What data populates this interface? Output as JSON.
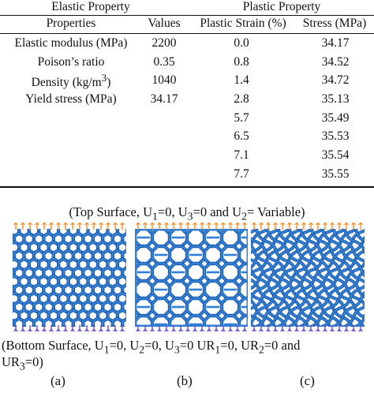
{
  "table": {
    "group_headers": {
      "elastic": "Elastic Property",
      "plastic": "Plastic Property"
    },
    "column_headers": {
      "properties": "Properties",
      "values": "Values",
      "plastic_strain": "Plastic Strain (%)",
      "stress": "Stress (MPa)"
    },
    "elastic_rows": [
      {
        "property_html": "Elastic modulus (MPa)",
        "value": "2200"
      },
      {
        "property_html": "Poison’s ratio",
        "value": "0.35"
      },
      {
        "property_html": "Density (kg/m<sup>3</sup>)",
        "value": "1040"
      },
      {
        "property_html": "Yield stress (MPa)",
        "value": "34.17"
      }
    ],
    "plastic_rows": [
      {
        "strain": "0.0",
        "stress": "34.17"
      },
      {
        "strain": "0.8",
        "stress": "34.52"
      },
      {
        "strain": "1.4",
        "stress": "34.72"
      },
      {
        "strain": "2.8",
        "stress": "35.13"
      },
      {
        "strain": "5.7",
        "stress": "35.49"
      },
      {
        "strain": "6.5",
        "stress": "35.53"
      },
      {
        "strain": "7.1",
        "stress": "35.54"
      },
      {
        "strain": "7.7",
        "stress": "35.55"
      }
    ]
  },
  "figure": {
    "top_caption_html": "(Top Surface, U<sub>1</sub>=0, U<sub>3</sub>=0 and U<sub>2</sub>= Variable)",
    "bottom_caption_line1_html": "(Bottom Surface, U<sub>1</sub>=0, U<sub>2</sub>=0, U<sub>3</sub>=0 UR<sub>1</sub>=0, UR<sub>2</sub>=0 and",
    "bottom_caption_line2_html": "UR<sub>3</sub>=0)",
    "panel_labels": [
      "(a)",
      "(b)",
      "(c)"
    ],
    "colors": {
      "lattice": "#2f7fd6",
      "lattice_edge": "#1b4f9a",
      "load_arrow": "#ff8a1e",
      "support": "#6a3fd0"
    }
  }
}
